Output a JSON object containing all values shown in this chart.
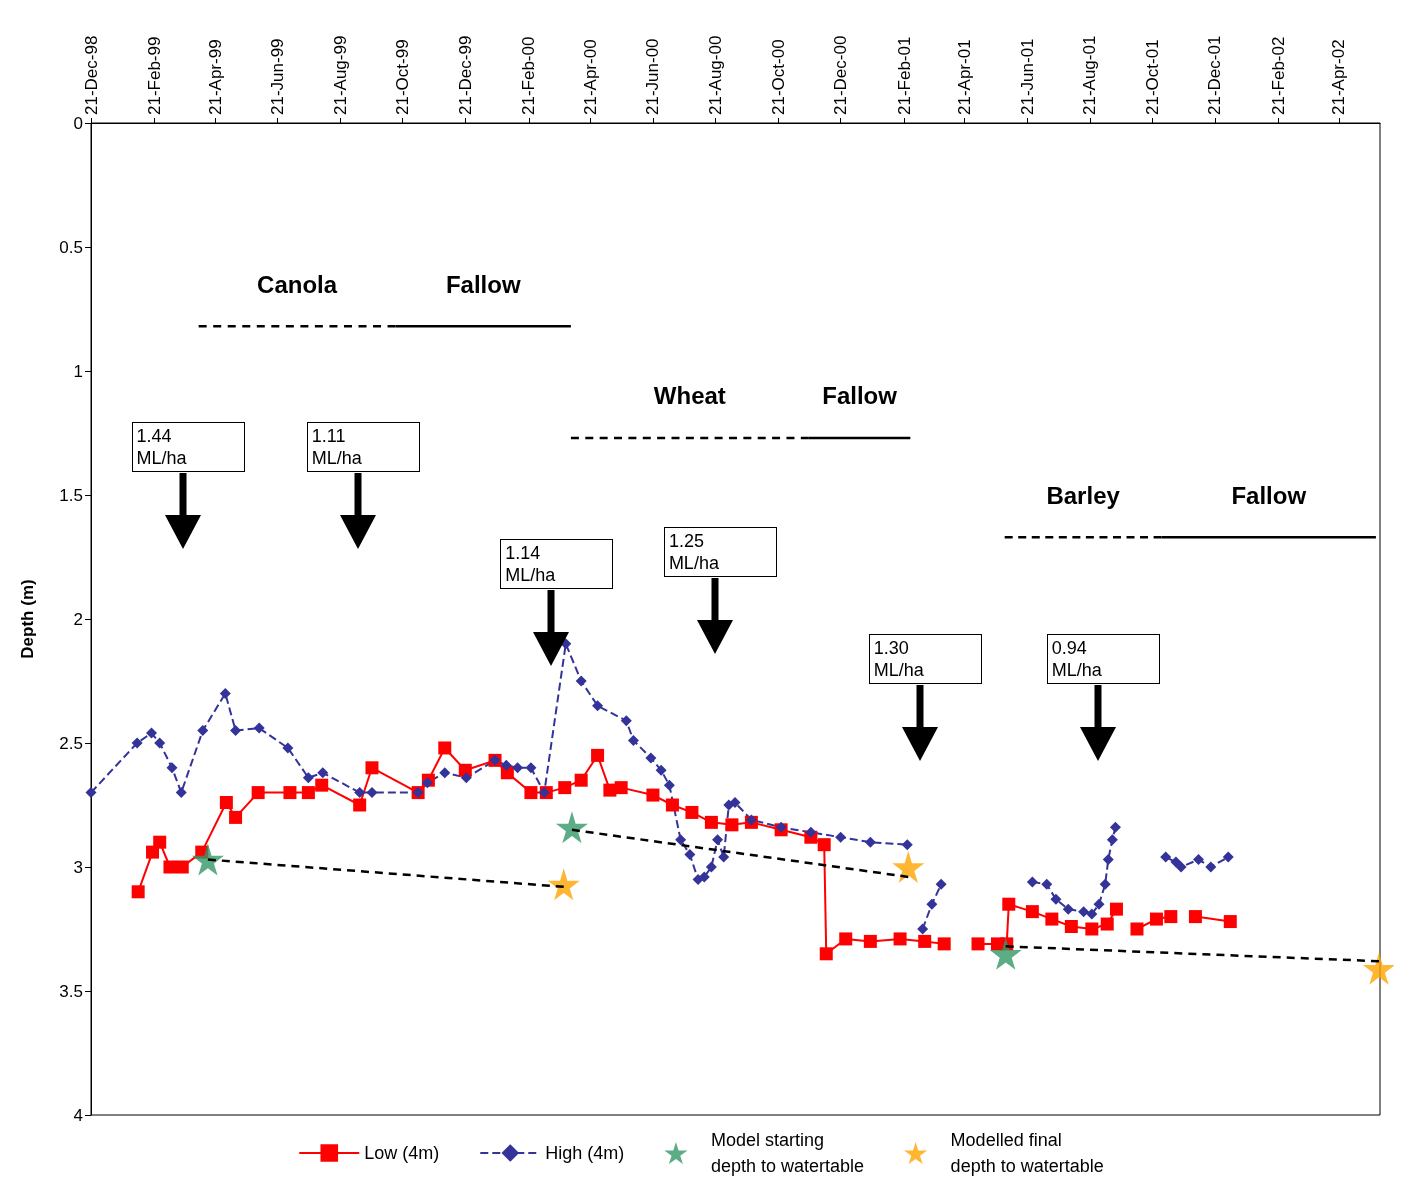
{
  "chart_data": {
    "type": "line",
    "ylabel": "Depth (m)",
    "xlim": [
      "1998-12-21",
      "2002-05-31"
    ],
    "xticks": [
      {
        "value": "1998-12-21",
        "label": "21-Dec-98"
      },
      {
        "value": "1999-02-21",
        "label": "21-Feb-99"
      },
      {
        "value": "1999-04-21",
        "label": "21-Apr-99"
      },
      {
        "value": "1999-06-21",
        "label": "21-Jun-99"
      },
      {
        "value": "1999-08-21",
        "label": "21-Aug-99"
      },
      {
        "value": "1999-10-21",
        "label": "21-Oct-99"
      },
      {
        "value": "1999-12-21",
        "label": "21-Dec-99"
      },
      {
        "value": "2000-02-21",
        "label": "21-Feb-00"
      },
      {
        "value": "2000-04-21",
        "label": "21-Apr-00"
      },
      {
        "value": "2000-06-21",
        "label": "21-Jun-00"
      },
      {
        "value": "2000-08-21",
        "label": "21-Aug-00"
      },
      {
        "value": "2000-10-21",
        "label": "21-Oct-00"
      },
      {
        "value": "2000-12-21",
        "label": "21-Dec-00"
      },
      {
        "value": "2001-02-21",
        "label": "21-Feb-01"
      },
      {
        "value": "2001-04-21",
        "label": "21-Apr-01"
      },
      {
        "value": "2001-06-21",
        "label": "21-Jun-01"
      },
      {
        "value": "2001-08-21",
        "label": "21-Aug-01"
      },
      {
        "value": "2001-10-21",
        "label": "21-Oct-01"
      },
      {
        "value": "2001-12-21",
        "label": "21-Dec-01"
      },
      {
        "value": "2002-02-21",
        "label": "21-Feb-02"
      },
      {
        "value": "2002-04-21",
        "label": "21-Apr-02"
      }
    ],
    "ylim": [
      4,
      0
    ],
    "yticks": [
      0,
      0.5,
      1,
      1.5,
      2,
      2.5,
      3,
      3.5,
      4
    ],
    "grid": false,
    "legend": "bottom",
    "series": [
      {
        "name": "Low (4m)",
        "color": "#ff0000",
        "marker": "square",
        "line_style": "solid",
        "x": [
          "1999-02-05",
          "1999-02-19",
          "1999-02-26",
          "1999-03-08",
          "1999-03-20",
          "1999-04-08",
          "1999-05-02",
          "1999-05-11",
          "1999-06-02",
          "1999-07-03",
          "1999-07-21",
          "1999-08-03",
          "1999-09-09",
          "1999-09-21",
          "1999-11-05",
          "1999-11-15",
          "1999-12-01",
          "1999-12-21",
          "2000-01-19",
          "2000-01-31",
          "2000-02-23",
          "2000-03-09",
          "2000-03-27",
          "2000-04-12",
          "2000-04-28",
          "2000-05-10",
          "2000-05-21",
          "2000-06-21",
          "2000-07-10",
          "2000-07-29",
          "2000-08-17",
          "2000-09-06",
          "2000-09-25",
          "2000-10-24",
          "2000-11-22",
          "2000-12-05",
          "2000-12-07",
          "2000-12-26",
          "2001-01-19",
          "2001-02-17",
          "2001-03-13",
          "2001-04-01",
          "2001-04-15",
          "2001-05-04",
          "2001-05-23",
          "2001-06-01",
          "2001-06-03",
          "2001-06-26",
          "2001-07-15",
          "2001-08-03",
          "2001-08-23",
          "2001-09-07",
          "2001-09-16",
          "2001-09-26",
          "2001-10-06",
          "2001-10-25",
          "2001-11-08",
          "2001-11-20",
          "2001-12-02",
          "2002-01-05"
        ],
        "values": [
          3.1,
          2.94,
          2.9,
          3.0,
          3.0,
          2.94,
          2.74,
          2.8,
          2.7,
          2.7,
          2.7,
          2.67,
          2.75,
          2.6,
          2.7,
          2.65,
          2.52,
          2.61,
          2.57,
          2.62,
          2.7,
          2.7,
          2.68,
          2.65,
          2.55,
          2.69,
          2.68,
          2.71,
          2.75,
          2.78,
          2.82,
          2.83,
          2.82,
          2.85,
          2.88,
          2.91,
          3.35,
          3.29,
          3.3,
          3.29,
          3.3,
          3.31,
          null,
          3.31,
          3.31,
          3.31,
          3.15,
          3.18,
          3.21,
          3.24,
          3.25,
          3.23,
          3.17,
          null,
          3.25,
          3.21,
          3.2,
          null,
          3.2,
          3.22
        ]
      },
      {
        "name": "High (4m)",
        "color": "#333399",
        "marker": "diamond",
        "line_style": "dashed",
        "x": [
          "1998-12-21",
          "1999-02-04",
          "1999-02-18",
          "1999-02-26",
          "1999-03-10",
          "1999-03-19",
          "1999-04-09",
          "1999-05-01",
          "1999-05-11",
          "1999-06-03",
          "1999-07-01",
          "1999-07-21",
          "1999-08-04",
          "1999-09-09",
          "1999-09-21",
          "1999-11-05",
          "1999-11-14",
          "1999-12-01",
          "1999-12-22",
          "2000-01-19",
          "2000-01-30",
          "2000-02-10",
          "2000-02-23",
          "2000-03-07",
          "2000-03-28",
          "2000-04-12",
          "2000-04-28",
          "2000-05-26",
          "2000-06-02",
          "2000-06-19",
          "2000-06-29",
          "2000-07-07",
          "2000-07-18",
          "2000-07-27",
          "2000-08-04",
          "2000-08-10",
          "2000-08-17",
          "2000-08-23",
          "2000-08-29",
          "2000-09-03",
          "2000-09-09",
          "2000-09-25",
          "2000-10-24",
          "2000-11-22",
          "2000-12-21",
          "2001-01-19",
          "2001-02-24",
          "2001-03-03",
          "2001-03-11",
          "2001-03-20",
          "2001-03-29",
          "2001-05-15",
          "2001-06-26",
          "2001-07-10",
          "2001-07-19",
          "2001-07-31",
          "2001-08-15",
          "2001-08-23",
          "2001-08-30",
          "2001-09-05",
          "2001-09-08",
          "2001-09-12",
          "2001-09-15",
          "2001-10-15",
          "2001-11-03",
          "2001-11-13",
          "2001-11-18",
          "2001-12-05",
          "2001-12-17",
          "2002-01-03"
        ],
        "values": [
          2.7,
          2.5,
          2.46,
          2.5,
          2.6,
          2.7,
          2.45,
          2.3,
          2.45,
          2.44,
          2.52,
          2.64,
          2.62,
          2.7,
          2.7,
          2.7,
          2.66,
          2.62,
          2.64,
          2.57,
          2.59,
          2.6,
          2.6,
          2.7,
          2.1,
          2.25,
          2.35,
          2.41,
          2.49,
          2.56,
          2.61,
          2.67,
          2.89,
          2.95,
          3.05,
          3.04,
          3.0,
          2.89,
          2.96,
          2.75,
          2.74,
          2.81,
          2.84,
          2.86,
          2.88,
          2.9,
          2.91,
          null,
          3.25,
          3.15,
          3.07,
          null,
          3.06,
          3.07,
          3.13,
          3.17,
          3.18,
          3.19,
          3.15,
          3.07,
          2.97,
          2.89,
          2.84,
          null,
          2.96,
          2.98,
          3.0,
          2.97,
          3.0,
          2.96
        ]
      },
      {
        "name": "Model starting depth to watertable",
        "type": "scatter",
        "color": "#339966",
        "marker": "star",
        "x": [
          "1999-04-14",
          "2000-04-03",
          "2001-05-31"
        ],
        "values": [
          2.97,
          2.84,
          3.35
        ]
      },
      {
        "name": "Modelled final depth to watertable",
        "type": "scatter",
        "color": "#ffa500",
        "marker": "star",
        "x": [
          "2000-03-26",
          "2001-02-25",
          "2002-05-30"
        ],
        "values": [
          3.07,
          3.0,
          3.41
        ]
      },
      {
        "type": "line",
        "color": "#000000",
        "marker": "none",
        "line_style": "dashed",
        "x": [
          "1999-04-14",
          "2000-03-26"
        ],
        "values": [
          2.97,
          3.08
        ]
      },
      {
        "type": "line",
        "color": "#000000",
        "marker": "none",
        "line_style": "dashed",
        "x": [
          "2000-04-03",
          "2001-02-25"
        ],
        "values": [
          2.85,
          3.04
        ]
      },
      {
        "type": "line",
        "color": "#000000",
        "marker": "none",
        "line_style": "dashed",
        "x": [
          "2001-05-31",
          "2002-05-30"
        ],
        "values": [
          3.32,
          3.38
        ]
      },
      {
        "name": "Canola",
        "type": "line",
        "color": "#000000",
        "marker": "none",
        "line_style": "dashed",
        "x": [
          "1999-04-05",
          "1999-10-14"
        ],
        "values": [
          0.82,
          0.82
        ]
      },
      {
        "name": "Fallow",
        "type": "line",
        "color": "#000000",
        "marker": "none",
        "line_style": "solid",
        "x": [
          "1999-10-14",
          "2000-04-02"
        ],
        "values": [
          0.82,
          0.82
        ]
      },
      {
        "name": "Wheat",
        "type": "line",
        "color": "#000000",
        "marker": "none",
        "line_style": "dashed",
        "x": [
          "2000-04-02",
          "2000-11-20"
        ],
        "values": [
          1.27,
          1.27
        ]
      },
      {
        "name": "Fallow",
        "type": "line",
        "color": "#000000",
        "marker": "none",
        "line_style": "solid",
        "x": [
          "2000-11-20",
          "2001-02-27"
        ],
        "values": [
          1.27,
          1.27
        ]
      },
      {
        "name": "Barley",
        "type": "line",
        "color": "#000000",
        "marker": "none",
        "line_style": "dashed",
        "x": [
          "2001-05-30",
          "2001-10-30"
        ],
        "values": [
          1.67,
          1.67
        ]
      },
      {
        "name": "Fallow",
        "type": "line",
        "color": "#000000",
        "marker": "none",
        "line_style": "solid",
        "x": [
          "2001-10-30",
          "2002-05-27"
        ],
        "values": [
          1.67,
          1.67
        ]
      }
    ],
    "annotations": [
      "1.44 ML/ha",
      "1.11 ML/ha",
      "1.14 ML/ha",
      "1.25 ML/ha",
      "1.30 ML/ha",
      "0.94 ML/ha"
    ]
  }
}
